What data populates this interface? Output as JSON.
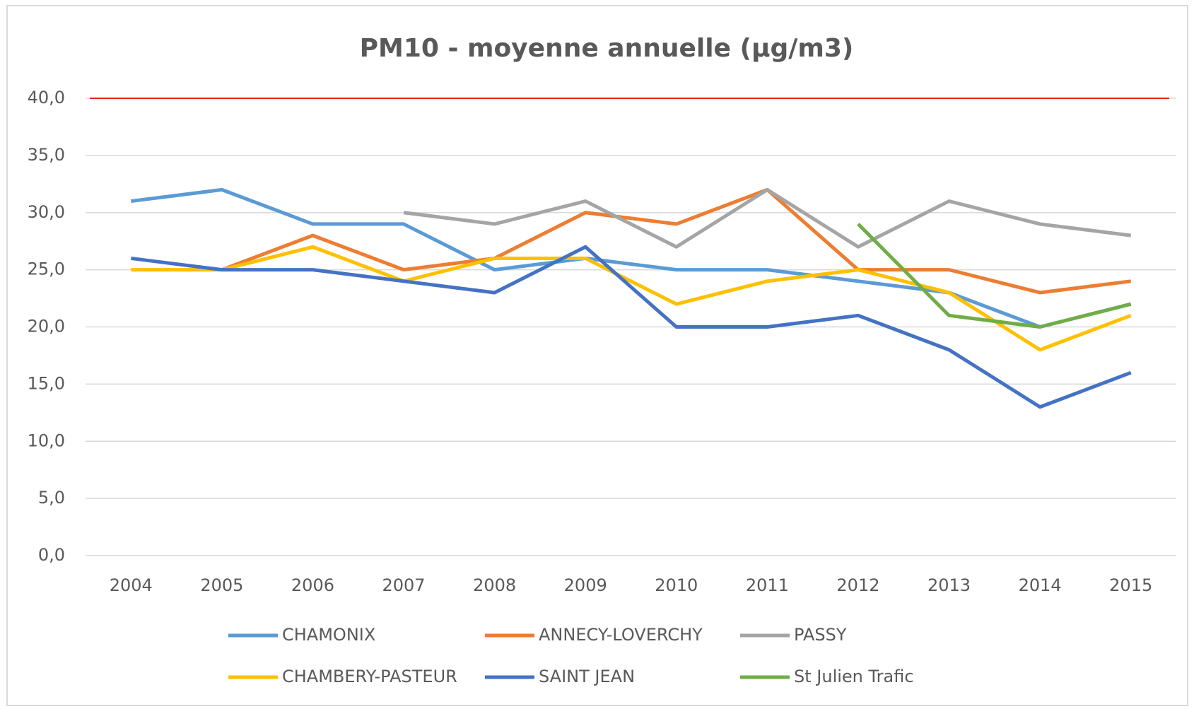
{
  "chart_data": {
    "type": "line",
    "title": "PM10 - moyenne annuelle (µg/m3)",
    "categories": [
      "2004",
      "2005",
      "2006",
      "2007",
      "2008",
      "2009",
      "2010",
      "2011",
      "2012",
      "2013",
      "2014",
      "2015"
    ],
    "series": [
      {
        "name": "CHAMONIX",
        "color": "#5b9bd5",
        "values": [
          31,
          32,
          29,
          29,
          25,
          26,
          25,
          25,
          24,
          23,
          20,
          22
        ]
      },
      {
        "name": "ANNECY-LOVERCHY",
        "color": "#ed7d31",
        "values": [
          null,
          25,
          28,
          25,
          26,
          30,
          29,
          32,
          25,
          25,
          23,
          24
        ]
      },
      {
        "name": "PASSY",
        "color": "#a5a5a5",
        "values": [
          null,
          null,
          null,
          30,
          29,
          31,
          27,
          32,
          27,
          31,
          29,
          28
        ]
      },
      {
        "name": "CHAMBERY-PASTEUR",
        "color": "#ffc000",
        "values": [
          25,
          25,
          27,
          24,
          26,
          26,
          22,
          24,
          25,
          23,
          18,
          21
        ]
      },
      {
        "name": "SAINT JEAN",
        "color": "#4472c4",
        "values": [
          26,
          25,
          25,
          24,
          23,
          27,
          20,
          20,
          21,
          18,
          13,
          16
        ]
      },
      {
        "name": "St Julien Trafic",
        "color": "#70ad47",
        "values": [
          null,
          null,
          null,
          null,
          null,
          null,
          null,
          null,
          29,
          21,
          20,
          22
        ]
      }
    ],
    "reference_line": {
      "value": 40,
      "color": "#e8261c"
    },
    "ylim": [
      0,
      40
    ],
    "yticks": [
      {
        "value": 0,
        "label": "0,0"
      },
      {
        "value": 5,
        "label": "5,0"
      },
      {
        "value": 10,
        "label": "10,0"
      },
      {
        "value": 15,
        "label": "15,0"
      },
      {
        "value": 20,
        "label": "20,0"
      },
      {
        "value": 25,
        "label": "25,0"
      },
      {
        "value": 30,
        "label": "30,0"
      },
      {
        "value": 35,
        "label": "35,0"
      },
      {
        "value": 40,
        "label": "40,0"
      }
    ],
    "grid": true
  }
}
